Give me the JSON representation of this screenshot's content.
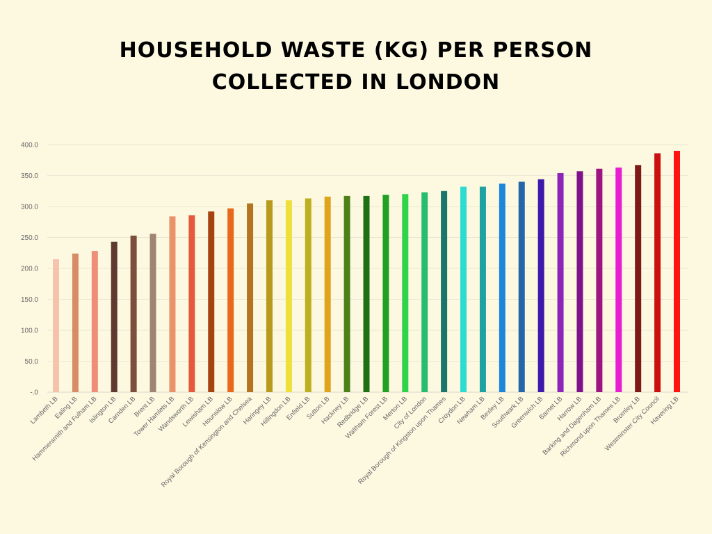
{
  "title_line1": "HOUSEHOLD WASTE (KG) PER PERSON",
  "title_line2": "COLLECTED IN LONDON",
  "chart_data": {
    "type": "bar",
    "title": "HOUSEHOLD WASTE (KG) PER PERSON COLLECTED IN LONDON",
    "xlabel": "",
    "ylabel": "",
    "ylim": [
      0,
      400
    ],
    "yticks": [
      0,
      50,
      100,
      150,
      200,
      250,
      300,
      350,
      400
    ],
    "ytick_labels": [
      "-.0",
      "50.0",
      "100.0",
      "150.0",
      "200.0",
      "250.0",
      "300.0",
      "350.0",
      "400.0"
    ],
    "grid": true,
    "categories": [
      "Lambeth LB",
      "Ealing LB",
      "Hammersmith and Fulham LB",
      "Islington LB",
      "Camden LB",
      "Brent LB",
      "Tower Hamlets LB",
      "Wandsworth LB",
      "Lewisham LB",
      "Hounslow LB",
      "Royal Borough of Kensington and Chelsea",
      "Haringey LB",
      "Hillingdon LB",
      "Enfield LB",
      "Sutton LB",
      "Hackney LB",
      "Redbridge LB",
      "Waltham Forest LB",
      "Merton LB",
      "City of London",
      "Royal Borough of Kingston upon Thames",
      "Croydon LB",
      "Newham LB",
      "Bexley LB",
      "Southwark LB",
      "Greenwich LB",
      "Barnet LB",
      "Harrow LB",
      "Barking and Dagenham LB",
      "Richmond upon Thames LB",
      "Bromley LB",
      "Westminster City Council",
      "Havering LB"
    ],
    "values": [
      215,
      224,
      228,
      243,
      253,
      256,
      284,
      286,
      292,
      297,
      305,
      310,
      310,
      313,
      316,
      317,
      317,
      319,
      320,
      323,
      325,
      332,
      332,
      337,
      340,
      344,
      354,
      357,
      361,
      363,
      367,
      386,
      390
    ],
    "colors": [
      "#f7c2ac",
      "#d88c66",
      "#ee8e78",
      "#5e3a30",
      "#7e4e3c",
      "#a08472",
      "#e8936a",
      "#e55a3e",
      "#a64411",
      "#e8681c",
      "#b57520",
      "#b89a1c",
      "#efdf3a",
      "#bcb020",
      "#e0a41c",
      "#4e8018",
      "#1e7014",
      "#22a022",
      "#2ed44a",
      "#28bc70",
      "#1a766a",
      "#2cdcd0",
      "#20a2a2",
      "#1c86dc",
      "#2466aa",
      "#3c1aaa",
      "#8c26b8",
      "#7e128a",
      "#a01482",
      "#e81ed0",
      "#7c1a1a",
      "#cc1010",
      "#ff1414"
    ]
  }
}
